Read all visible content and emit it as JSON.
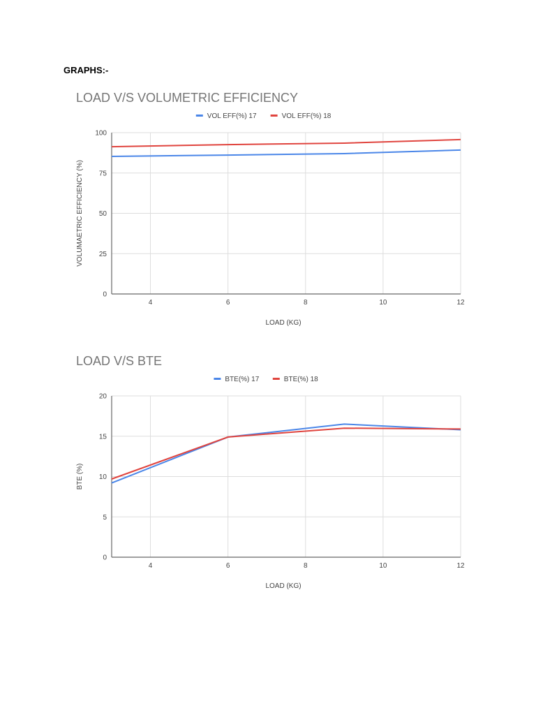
{
  "page": {
    "heading": "GRAPHS:-"
  },
  "colors": {
    "series1": "#4a86e8",
    "series2": "#e0443e",
    "grid": "#dddddd",
    "axis": "#666666",
    "title": "#757575",
    "text": "#444444"
  },
  "chart_data": [
    {
      "type": "line",
      "title": "LOAD V/S VOLUMETRIC EFFICIENCY",
      "xlabel": "LOAD (KG)",
      "ylabel": "VOLUMAETRIC EFFICIENCY (%)",
      "x": [
        3,
        6,
        9,
        12
      ],
      "xlim": [
        3,
        12
      ],
      "xticks": [
        4,
        6,
        8,
        10,
        12
      ],
      "ylim": [
        0,
        100
      ],
      "yticks": [
        0,
        25,
        50,
        75,
        100
      ],
      "grid": true,
      "legend_position": "top",
      "series": [
        {
          "name": "VOL EFF(%) 17",
          "values": [
            85.3,
            86.1,
            87.0,
            89.2
          ]
        },
        {
          "name": "VOL EFF(%) 18",
          "values": [
            91.3,
            92.6,
            93.5,
            95.7
          ]
        }
      ]
    },
    {
      "type": "line",
      "title": "LOAD V/S BTE",
      "xlabel": "LOAD (KG)",
      "ylabel": "BTE (%)",
      "x": [
        3,
        6,
        9,
        12
      ],
      "xlim": [
        3,
        12
      ],
      "xticks": [
        4,
        6,
        8,
        10,
        12
      ],
      "ylim": [
        0,
        20
      ],
      "yticks": [
        0,
        5,
        10,
        15,
        20
      ],
      "grid": true,
      "legend_position": "top",
      "series": [
        {
          "name": "BTE(%) 17",
          "values": [
            9.2,
            14.9,
            16.5,
            15.8
          ]
        },
        {
          "name": "BTE(%) 18",
          "values": [
            9.7,
            14.9,
            16.0,
            15.9
          ]
        }
      ]
    }
  ]
}
